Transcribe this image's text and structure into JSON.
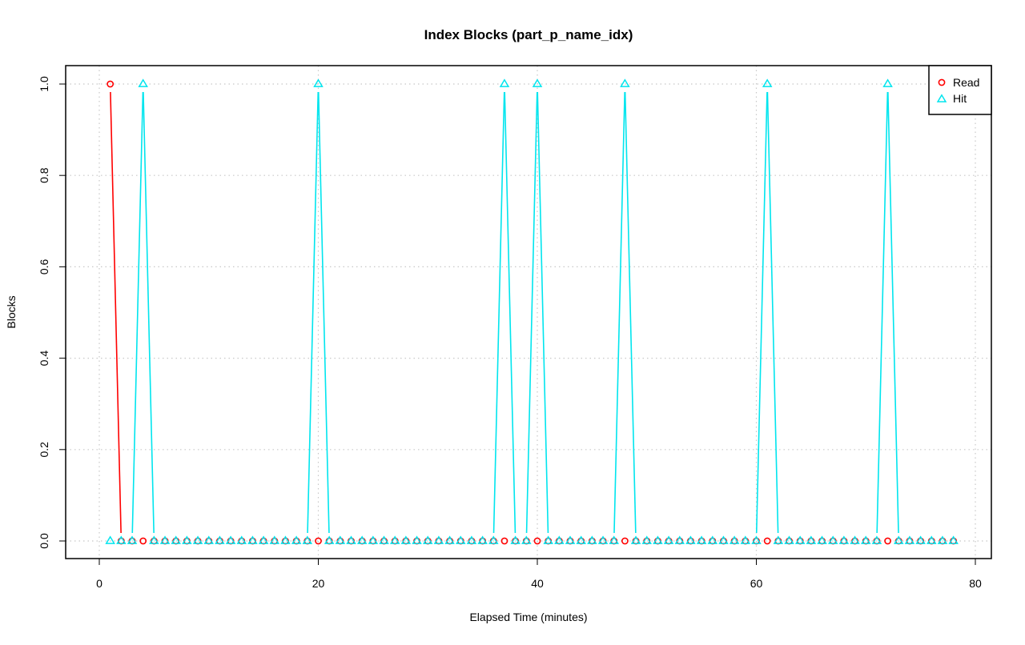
{
  "chart_data": {
    "type": "line",
    "title": "Index Blocks (part_p_name_idx)",
    "xlabel": "Elapsed Time (minutes)",
    "ylabel": "Blocks",
    "xlim": [
      0,
      80
    ],
    "ylim": [
      0,
      1
    ],
    "x_ticks": [
      0,
      20,
      40,
      60,
      80
    ],
    "y_ticks": [
      0.0,
      0.2,
      0.4,
      0.6,
      0.8,
      1.0
    ],
    "x_tick_labels": [
      "0",
      "20",
      "40",
      "60",
      "80"
    ],
    "y_tick_labels": [
      "0.0",
      "0.2",
      "0.4",
      "0.6",
      "0.8",
      "1.0"
    ],
    "grid": true,
    "legend": "top-right",
    "x": [
      1,
      2,
      3,
      4,
      5,
      6,
      7,
      8,
      9,
      10,
      11,
      12,
      13,
      14,
      15,
      16,
      17,
      18,
      19,
      20,
      21,
      22,
      23,
      24,
      25,
      26,
      27,
      28,
      29,
      30,
      31,
      32,
      33,
      34,
      35,
      36,
      37,
      38,
      39,
      40,
      41,
      42,
      43,
      44,
      45,
      46,
      47,
      48,
      49,
      50,
      51,
      52,
      53,
      54,
      55,
      56,
      57,
      58,
      59,
      60,
      61,
      62,
      63,
      64,
      65,
      66,
      67,
      68,
      69,
      70,
      71,
      72,
      73,
      74,
      75,
      76,
      77,
      78
    ],
    "series": [
      {
        "name": "Read",
        "color": "#ff0000",
        "marker": "circle",
        "values": [
          1,
          0,
          0,
          0,
          0,
          0,
          0,
          0,
          0,
          0,
          0,
          0,
          0,
          0,
          0,
          0,
          0,
          0,
          0,
          0,
          0,
          0,
          0,
          0,
          0,
          0,
          0,
          0,
          0,
          0,
          0,
          0,
          0,
          0,
          0,
          0,
          0,
          0,
          0,
          0,
          0,
          0,
          0,
          0,
          0,
          0,
          0,
          0,
          0,
          0,
          0,
          0,
          0,
          0,
          0,
          0,
          0,
          0,
          0,
          0,
          0,
          0,
          0,
          0,
          0,
          0,
          0,
          0,
          0,
          0,
          0,
          0,
          0,
          0,
          0,
          0,
          0,
          0
        ]
      },
      {
        "name": "Hit",
        "color": "#00e5ee",
        "marker": "triangle",
        "values": [
          0,
          0,
          0,
          1,
          0,
          0,
          0,
          0,
          0,
          0,
          0,
          0,
          0,
          0,
          0,
          0,
          0,
          0,
          0,
          1,
          0,
          0,
          0,
          0,
          0,
          0,
          0,
          0,
          0,
          0,
          0,
          0,
          0,
          0,
          0,
          0,
          1,
          0,
          0,
          1,
          0,
          0,
          0,
          0,
          0,
          0,
          0,
          1,
          0,
          0,
          0,
          0,
          0,
          0,
          0,
          0,
          0,
          0,
          0,
          0,
          1,
          0,
          0,
          0,
          0,
          0,
          0,
          0,
          0,
          0,
          0,
          1,
          0,
          0,
          0,
          0,
          0,
          0
        ]
      }
    ]
  }
}
